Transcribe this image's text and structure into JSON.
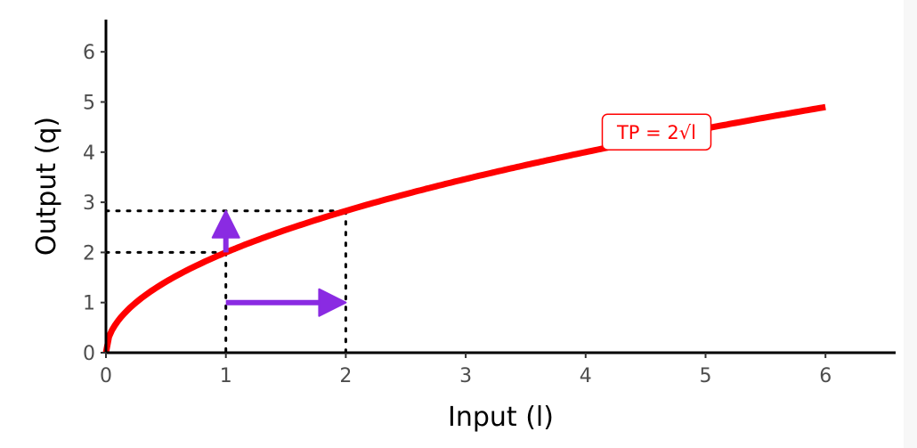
{
  "chart_data": {
    "type": "line",
    "xlabel": "Input (l)",
    "ylabel": "Output (q)",
    "xlim": [
      0,
      6.6
    ],
    "ylim": [
      0,
      6.6
    ],
    "x_ticks": [
      0,
      1,
      2,
      3,
      4,
      5,
      6
    ],
    "y_ticks": [
      0,
      1,
      2,
      3,
      4,
      5,
      6
    ],
    "grid": false,
    "series": [
      {
        "label_text": "TP = 2√l",
        "label_at_x": 5,
        "color": "#ff0000",
        "function": "2*sqrt(l)",
        "x": [
          0,
          0.05,
          0.1,
          0.25,
          0.5,
          1,
          1.5,
          2,
          2.5,
          3,
          3.5,
          4,
          4.5,
          5,
          5.5,
          6
        ],
        "y": [
          0,
          0.447,
          0.632,
          1,
          1.414,
          2,
          2.449,
          2.828,
          3.162,
          3.464,
          3.742,
          4,
          4.243,
          4.472,
          4.69,
          4.899
        ]
      }
    ],
    "annotations": {
      "dotted_guides": [
        {
          "x": 1,
          "y": 2
        },
        {
          "x": 2,
          "y": 2.828
        }
      ],
      "arrows": [
        {
          "name": "input-increase-arrow",
          "from": [
            1,
            1
          ],
          "to": [
            2,
            1
          ],
          "color": "#8a2be2"
        },
        {
          "name": "output-increase-arrow",
          "from": [
            1,
            2
          ],
          "to": [
            1,
            2.828
          ],
          "color": "#8a2be2"
        }
      ]
    }
  }
}
